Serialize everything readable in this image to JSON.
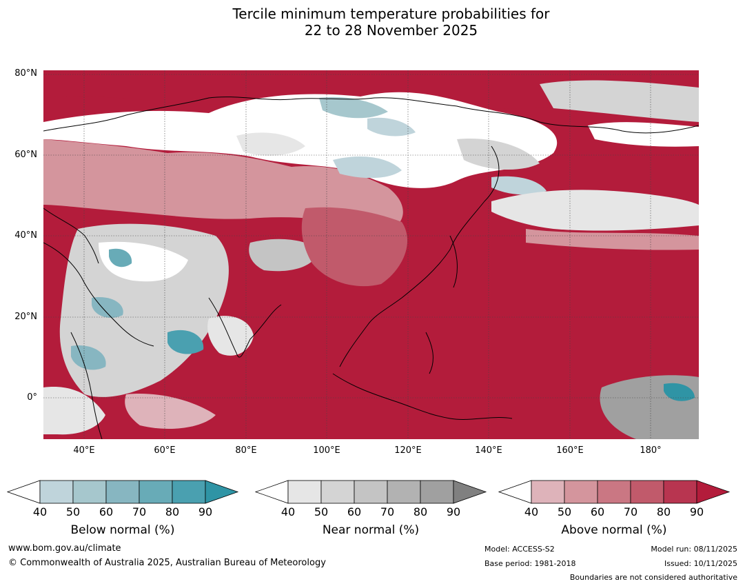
{
  "title_line1": "Tercile minimum temperature probabilities for",
  "title_line2": "22 to 28 November 2025",
  "latitude_labels": [
    "80°N",
    "60°N",
    "40°N",
    "20°N",
    "0°"
  ],
  "longitude_labels": [
    "40°E",
    "60°E",
    "80°E",
    "100°E",
    "120°E",
    "140°E",
    "160°E",
    "180°"
  ],
  "map_extent": {
    "lon_min": 30,
    "lon_max": 192,
    "lat_min": -10,
    "lat_max": 81
  },
  "colorbars": [
    {
      "label": "Below normal (%)",
      "ticks": [
        "40",
        "50",
        "60",
        "70",
        "80",
        "90"
      ],
      "colors": [
        "#ffffff",
        "#bfd4db",
        "#a6c7cd",
        "#87b6c1",
        "#68abb7",
        "#4aa0b0",
        "#2f94a5"
      ]
    },
    {
      "label": "Near normal (%)",
      "ticks": [
        "40",
        "50",
        "60",
        "70",
        "80",
        "90"
      ],
      "colors": [
        "#ffffff",
        "#e6e6e6",
        "#d4d4d4",
        "#c4c4c4",
        "#b2b2b2",
        "#a0a0a0",
        "#808080"
      ]
    },
    {
      "label": "Above normal (%)",
      "ticks": [
        "40",
        "50",
        "60",
        "70",
        "80",
        "90"
      ],
      "colors": [
        "#ffffff",
        "#deb3ba",
        "#d4959d",
        "#ca7783",
        "#c15a6b",
        "#b83550",
        "#b31c3b"
      ]
    }
  ],
  "footer": {
    "website": "www.bom.gov.au/climate",
    "copyright": "© Commonwealth of Australia 2025, Australian Bureau of Meteorology",
    "model": "Model: ACCESS-S2",
    "base_period": "Base period: 1981-2018",
    "model_run": "Model run: 08/11/2025",
    "issued": "Issued: 10/11/2025",
    "disclaimer": "Boundaries are not considered authoritative"
  }
}
